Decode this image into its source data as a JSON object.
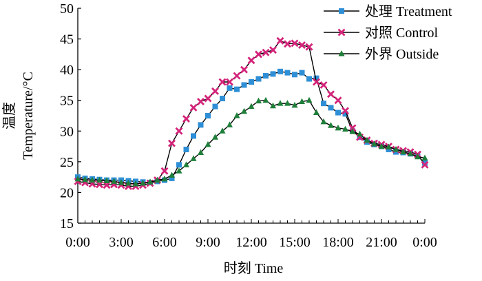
{
  "chart_data": {
    "type": "line",
    "xlabel": "时刻 Time",
    "ylabel_cn": "温度",
    "ylabel_en": "Temperature/°C",
    "xlim": [
      0,
      24
    ],
    "ylim": [
      15,
      50
    ],
    "y_ticks": [
      15,
      20,
      25,
      30,
      35,
      40,
      45,
      50
    ],
    "x_ticks": [
      {
        "x": 0,
        "label": "0:00"
      },
      {
        "x": 3,
        "label": "3:00"
      },
      {
        "x": 6,
        "label": "6:00"
      },
      {
        "x": 9,
        "label": "9:00"
      },
      {
        "x": 12,
        "label": "12:00"
      },
      {
        "x": 15,
        "label": "15:00"
      },
      {
        "x": 18,
        "label": "18:00"
      },
      {
        "x": 21,
        "label": "21:00"
      },
      {
        "x": 24,
        "label": "0:00"
      }
    ],
    "x": [
      0,
      0.5,
      1,
      1.5,
      2,
      2.5,
      3,
      3.5,
      4,
      4.5,
      5,
      5.5,
      6,
      6.5,
      7,
      7.5,
      8,
      8.5,
      9,
      9.5,
      10,
      10.5,
      11,
      11.5,
      12,
      12.5,
      13,
      13.5,
      14,
      14.5,
      15,
      15.5,
      16,
      16.5,
      17,
      17.5,
      18,
      18.5,
      19,
      19.5,
      20,
      20.5,
      21,
      21.5,
      22,
      22.5,
      23,
      23.5,
      24
    ],
    "legend_position": "top-right",
    "series": [
      {
        "name": "处理  Treatment",
        "color": "#2e8fd6",
        "marker": "square",
        "values": [
          22.5,
          22.3,
          22.2,
          22.1,
          22.0,
          22.0,
          22.0,
          21.9,
          21.8,
          21.7,
          21.6,
          21.8,
          22.0,
          22.3,
          24.5,
          27.0,
          29.2,
          31.0,
          32.5,
          34.0,
          35.3,
          37.0,
          36.8,
          37.5,
          38.0,
          38.5,
          39.0,
          39.3,
          39.7,
          39.5,
          39.2,
          39.5,
          38.5,
          38.6,
          34.5,
          33.8,
          33.0,
          32.8,
          30.0,
          29.0,
          28.2,
          27.8,
          27.5,
          27.0,
          26.6,
          26.5,
          26.3,
          25.9,
          24.8
        ]
      },
      {
        "name": "对照  Control",
        "color": "#d4247a",
        "marker": "x",
        "values": [
          21.8,
          21.6,
          21.4,
          21.3,
          21.2,
          21.3,
          21.2,
          21.0,
          21.0,
          21.2,
          21.5,
          22.0,
          23.5,
          28.0,
          30.0,
          32.0,
          33.8,
          34.8,
          35.3,
          36.5,
          38.0,
          38.0,
          39.0,
          40.0,
          41.5,
          42.5,
          42.8,
          43.2,
          44.7,
          44.2,
          44.3,
          44.0,
          43.7,
          38.0,
          37.5,
          36.0,
          35.0,
          33.3,
          30.5,
          29.0,
          28.5,
          28.0,
          27.8,
          27.5,
          27.0,
          26.8,
          26.6,
          26.2,
          24.5
        ]
      },
      {
        "name": "外界  Outside",
        "color": "#1f7f3a",
        "marker": "triangle",
        "values": [
          22.2,
          22.1,
          22.0,
          22.0,
          21.9,
          21.8,
          21.6,
          21.5,
          21.4,
          21.5,
          21.7,
          22.0,
          22.2,
          22.8,
          23.5,
          24.5,
          25.5,
          26.5,
          27.8,
          29.0,
          30.0,
          31.0,
          32.5,
          33.2,
          34.0,
          34.9,
          35.0,
          34.1,
          34.5,
          34.5,
          34.2,
          34.8,
          35.0,
          33.0,
          31.5,
          30.9,
          30.5,
          30.3,
          29.9,
          29.5,
          28.5,
          27.9,
          27.5,
          27.4,
          27.0,
          26.6,
          26.3,
          25.8,
          25.6
        ]
      }
    ]
  }
}
